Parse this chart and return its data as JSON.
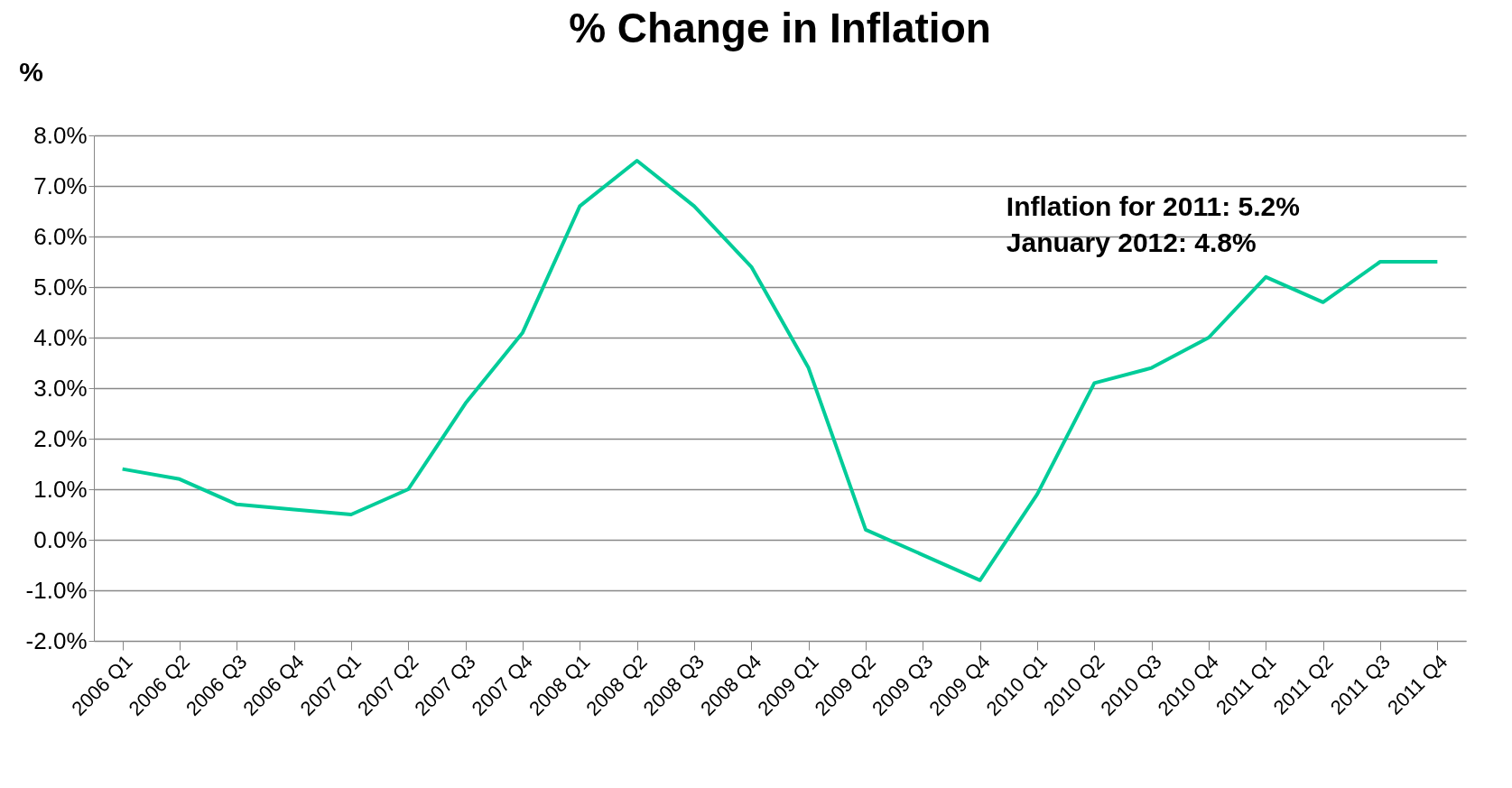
{
  "chart_data": {
    "type": "line",
    "title": "% Change in Inflation",
    "ylabel": "%",
    "categories": [
      "2006 Q1",
      "2006 Q2",
      "2006 Q3",
      "2006 Q4",
      "2007 Q1",
      "2007 Q2",
      "2007 Q3",
      "2007 Q4",
      "2008 Q1",
      "2008 Q2",
      "2008 Q3",
      "2008 Q4",
      "2009 Q1",
      "2009 Q2",
      "2009 Q3",
      "2009 Q4",
      "2010 Q1",
      "2010 Q2",
      "2010 Q3",
      "2010 Q4",
      "2011 Q1",
      "2011 Q2",
      "2011 Q3",
      "2011 Q4"
    ],
    "series": [
      {
        "color": "#00cc99",
        "values": [
          1.4,
          1.2,
          0.7,
          0.6,
          0.5,
          1.0,
          2.7,
          4.1,
          6.6,
          7.5,
          6.6,
          5.4,
          3.4,
          0.2,
          -0.3,
          -0.8,
          0.9,
          3.1,
          3.4,
          4.0,
          5.2,
          4.7,
          5.5,
          5.5
        ]
      }
    ],
    "ylim": [
      -2,
      8
    ],
    "yticks": [
      {
        "value": -2,
        "label": "-2.0%"
      },
      {
        "value": -1,
        "label": "-1.0%"
      },
      {
        "value": 0,
        "label": "0.0%"
      },
      {
        "value": 1,
        "label": "1.0%"
      },
      {
        "value": 2,
        "label": "2.0%"
      },
      {
        "value": 3,
        "label": "3.0%"
      },
      {
        "value": 4,
        "label": "4.0%"
      },
      {
        "value": 5,
        "label": "5.0%"
      },
      {
        "value": 6,
        "label": "6.0%"
      },
      {
        "value": 7,
        "label": "7.0%"
      },
      {
        "value": 8,
        "label": "8.0%"
      }
    ],
    "grid": "y",
    "legend": false,
    "line_style": "solid",
    "marker": "none",
    "annotations": [
      "Inflation for 2011: 5.2%",
      "January 2012: 4.8%"
    ]
  }
}
